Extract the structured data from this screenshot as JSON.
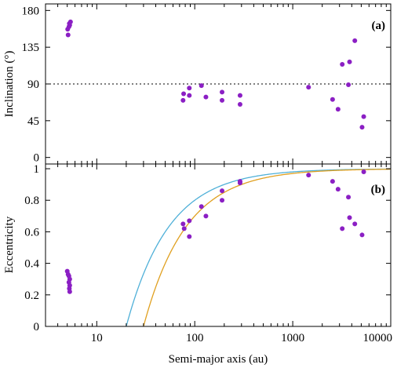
{
  "chart_data": [
    {
      "type": "scatter",
      "panel_label": "(a)",
      "xlabel": "",
      "ylabel": "Inclination (°)",
      "xscale": "log",
      "xlim": [
        3,
        10000
      ],
      "ylim": [
        -8,
        188
      ],
      "yticks": [
        0,
        45,
        90,
        135,
        180
      ],
      "ytick_labels": [
        "0",
        "45",
        "90",
        "135",
        "180"
      ],
      "grid": false,
      "reference_line": {
        "y": 90,
        "style": "dotted"
      },
      "point_color": "#8b1fc4",
      "points": [
        [
          5.1,
          150
        ],
        [
          5.05,
          157
        ],
        [
          5.2,
          160
        ],
        [
          5.3,
          162
        ],
        [
          5.25,
          164
        ],
        [
          5.4,
          166
        ],
        [
          76,
          70
        ],
        [
          77,
          78
        ],
        [
          88,
          85
        ],
        [
          88,
          76
        ],
        [
          117,
          88
        ],
        [
          130,
          74
        ],
        [
          190,
          80
        ],
        [
          190,
          70
        ],
        [
          290,
          76
        ],
        [
          290,
          65
        ],
        [
          1450,
          86
        ],
        [
          2550,
          71
        ],
        [
          2900,
          59
        ],
        [
          3200,
          114
        ],
        [
          3700,
          89
        ],
        [
          3800,
          117
        ],
        [
          4300,
          143
        ],
        [
          5100,
          37
        ],
        [
          5300,
          50
        ]
      ]
    },
    {
      "type": "scatter",
      "panel_label": "(b)",
      "xlabel": "Semi-major axis (au)",
      "ylabel": "Eccentricity",
      "xscale": "log",
      "xlim": [
        3,
        10000
      ],
      "ylim": [
        0,
        1.03
      ],
      "xticks": [
        10,
        100,
        1000,
        10000
      ],
      "xtick_labels": [
        "10",
        "100",
        "1000",
        "10000"
      ],
      "yticks": [
        0,
        0.2,
        0.4,
        0.6,
        0.8,
        1
      ],
      "ytick_labels": [
        "0",
        "0.2",
        "0.4",
        "0.6",
        "0.8",
        "1"
      ],
      "grid": false,
      "point_color": "#8b1fc4",
      "points": [
        [
          5.0,
          0.35
        ],
        [
          5.1,
          0.33
        ],
        [
          5.2,
          0.32
        ],
        [
          5.3,
          0.3
        ],
        [
          5.2,
          0.28
        ],
        [
          5.3,
          0.26
        ],
        [
          5.25,
          0.24
        ],
        [
          5.3,
          0.22
        ],
        [
          76,
          0.65
        ],
        [
          78,
          0.62
        ],
        [
          88,
          0.67
        ],
        [
          88,
          0.57
        ],
        [
          117,
          0.76
        ],
        [
          130,
          0.7
        ],
        [
          190,
          0.86
        ],
        [
          190,
          0.8
        ],
        [
          290,
          0.92
        ],
        [
          290,
          0.91
        ],
        [
          1450,
          0.96
        ],
        [
          2550,
          0.92
        ],
        [
          2900,
          0.87
        ],
        [
          3200,
          0.62
        ],
        [
          3700,
          0.82
        ],
        [
          3800,
          0.69
        ],
        [
          4300,
          0.65
        ],
        [
          5100,
          0.58
        ],
        [
          5300,
          0.98
        ]
      ],
      "curves": [
        {
          "color": "#4fb0d8",
          "formula": "e = 1 - q/a",
          "q": 20
        },
        {
          "color": "#e0a020",
          "formula": "e = 1 - q/a",
          "q": 30
        }
      ]
    }
  ]
}
